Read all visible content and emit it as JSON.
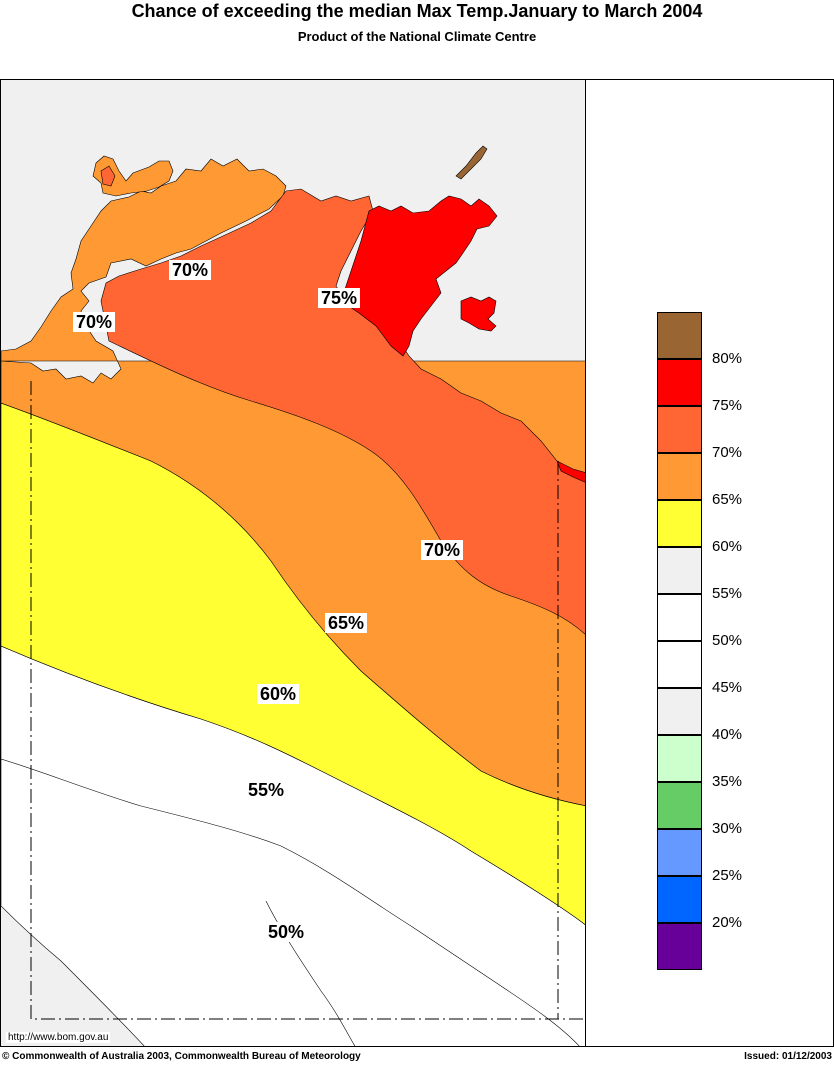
{
  "header": {
    "title": "Chance of exceeding the median Max Temp.January to March 2004",
    "subtitle": "Product of the National Climate Centre"
  },
  "map": {
    "contour_labels": [
      "70%",
      "70%",
      "75%",
      "70%",
      "65%",
      "60%",
      "55%",
      "50%"
    ],
    "url": "http://www.bom.gov.au",
    "zone_colors": {
      "above75": "#ff0000",
      "70to75": "#ff6633",
      "65to70": "#ff9933",
      "60to65": "#ffff33",
      "55to60": "#f0f0f0",
      "50to55": "#ffffff"
    }
  },
  "legend": {
    "items": [
      {
        "color": "#996633"
      },
      {
        "color": "#ff0000"
      },
      {
        "color": "#ff6633"
      },
      {
        "color": "#ff9933"
      },
      {
        "color": "#ffff33"
      },
      {
        "color": "#f0f0f0"
      },
      {
        "color": "#ffffff"
      },
      {
        "color": "#ffffff"
      },
      {
        "color": "#f0f0f0"
      },
      {
        "color": "#ccffcc"
      },
      {
        "color": "#66cc66"
      },
      {
        "color": "#6699ff"
      },
      {
        "color": "#0066ff"
      },
      {
        "color": "#660099"
      }
    ],
    "labels": [
      "80%",
      "75%",
      "70%",
      "65%",
      "60%",
      "55%",
      "50%",
      "45%",
      "40%",
      "35%",
      "30%",
      "25%",
      "20%"
    ]
  },
  "footer": {
    "copyright": "© Commonwealth of Australia 2003, Commonwealth Bureau of Meteorology",
    "issued": "Issued: 01/12/2003"
  }
}
